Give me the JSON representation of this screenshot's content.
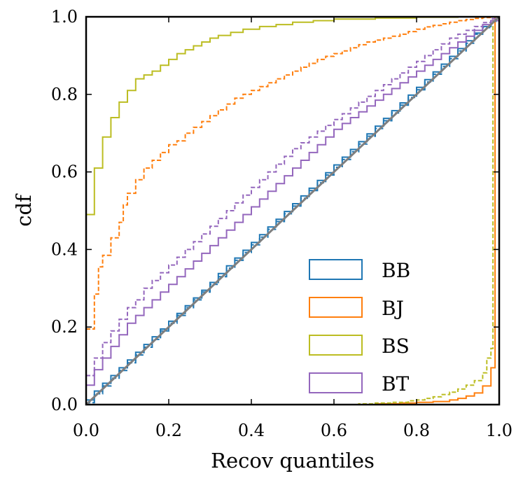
{
  "chart_data": {
    "type": "line",
    "subtype": "empirical-cdf-steps",
    "title": "",
    "xlabel": "Recov quantiles",
    "ylabel": "cdf",
    "xlim": [
      0,
      1
    ],
    "ylim": [
      0,
      1
    ],
    "xticks": [
      0.0,
      0.2,
      0.4,
      0.6,
      0.8,
      1.0
    ],
    "yticks": [
      0.0,
      0.2,
      0.4,
      0.6,
      0.8,
      1.0
    ],
    "xtick_labels": [
      "0.0",
      "0.2",
      "0.4",
      "0.6",
      "0.8",
      "1.0"
    ],
    "ytick_labels": [
      "0.0",
      "0.2",
      "0.4",
      "0.6",
      "0.8",
      "1.0"
    ],
    "legend_position": "lower-right",
    "reference_line": {
      "name": "diagonal",
      "color": "#7f7f7f",
      "points": [
        [
          0,
          0
        ],
        [
          1,
          1
        ]
      ]
    },
    "series": [
      {
        "name": "BB",
        "color": "#1f77b4",
        "solid": {
          "x": [
            0,
            0.02,
            0.04,
            0.06,
            0.08,
            0.1,
            0.12,
            0.14,
            0.16,
            0.18,
            0.2,
            0.22,
            0.24,
            0.26,
            0.28,
            0.3,
            0.32,
            0.34,
            0.36,
            0.38,
            0.4,
            0.42,
            0.44,
            0.46,
            0.48,
            0.5,
            0.52,
            0.54,
            0.56,
            0.58,
            0.6,
            0.62,
            0.64,
            0.66,
            0.68,
            0.7,
            0.72,
            0.74,
            0.76,
            0.78,
            0.8,
            0.82,
            0.84,
            0.86,
            0.88,
            0.9,
            0.92,
            0.94,
            0.96,
            0.98,
            1.0
          ],
          "y": [
            0.012,
            0.035,
            0.055,
            0.075,
            0.095,
            0.115,
            0.135,
            0.155,
            0.175,
            0.195,
            0.215,
            0.235,
            0.255,
            0.275,
            0.295,
            0.315,
            0.338,
            0.358,
            0.378,
            0.398,
            0.418,
            0.438,
            0.458,
            0.478,
            0.498,
            0.518,
            0.538,
            0.558,
            0.578,
            0.598,
            0.618,
            0.638,
            0.658,
            0.678,
            0.698,
            0.718,
            0.738,
            0.758,
            0.778,
            0.798,
            0.818,
            0.838,
            0.858,
            0.878,
            0.898,
            0.918,
            0.938,
            0.958,
            0.975,
            0.99,
            1.0
          ]
        },
        "dashed": {
          "x": [
            0,
            0.02,
            0.04,
            0.06,
            0.08,
            0.1,
            0.12,
            0.14,
            0.16,
            0.18,
            0.2,
            0.22,
            0.24,
            0.26,
            0.28,
            0.3,
            0.32,
            0.34,
            0.36,
            0.38,
            0.4,
            0.42,
            0.44,
            0.46,
            0.48,
            0.5,
            0.52,
            0.54,
            0.56,
            0.58,
            0.6,
            0.62,
            0.64,
            0.66,
            0.68,
            0.7,
            0.72,
            0.74,
            0.76,
            0.78,
            0.8,
            0.82,
            0.84,
            0.86,
            0.88,
            0.9,
            0.92,
            0.94,
            0.96,
            0.98,
            1.0
          ],
          "y": [
            0.005,
            0.028,
            0.048,
            0.068,
            0.088,
            0.108,
            0.128,
            0.148,
            0.168,
            0.19,
            0.21,
            0.23,
            0.25,
            0.27,
            0.29,
            0.31,
            0.33,
            0.352,
            0.372,
            0.392,
            0.412,
            0.432,
            0.452,
            0.472,
            0.492,
            0.512,
            0.532,
            0.552,
            0.572,
            0.592,
            0.612,
            0.632,
            0.652,
            0.672,
            0.692,
            0.712,
            0.732,
            0.752,
            0.772,
            0.792,
            0.812,
            0.832,
            0.852,
            0.872,
            0.892,
            0.912,
            0.932,
            0.955,
            0.972,
            0.988,
            1.0
          ]
        }
      },
      {
        "name": "BJ",
        "color": "#ff7f0e",
        "solid": {
          "x": [
            0,
            0.6,
            0.7,
            0.76,
            0.8,
            0.84,
            0.88,
            0.9,
            0.92,
            0.94,
            0.96,
            0.98,
            0.99,
            1.0
          ],
          "y": [
            0.0,
            0.0,
            0.002,
            0.004,
            0.006,
            0.008,
            0.012,
            0.016,
            0.022,
            0.03,
            0.048,
            0.095,
            1.0,
            1.0
          ]
        },
        "dashed": {
          "x": [
            0,
            0.02,
            0.03,
            0.04,
            0.06,
            0.08,
            0.09,
            0.1,
            0.12,
            0.14,
            0.16,
            0.18,
            0.2,
            0.22,
            0.24,
            0.26,
            0.28,
            0.3,
            0.32,
            0.34,
            0.36,
            0.38,
            0.4,
            0.42,
            0.44,
            0.46,
            0.48,
            0.5,
            0.52,
            0.54,
            0.56,
            0.58,
            0.6,
            0.62,
            0.64,
            0.66,
            0.68,
            0.7,
            0.72,
            0.74,
            0.76,
            0.78,
            0.8,
            0.82,
            0.84,
            0.86,
            0.88,
            0.9,
            0.92,
            0.94,
            0.96,
            0.98,
            1.0
          ],
          "y": [
            0.195,
            0.285,
            0.355,
            0.385,
            0.43,
            0.47,
            0.515,
            0.545,
            0.58,
            0.61,
            0.63,
            0.65,
            0.67,
            0.68,
            0.7,
            0.715,
            0.73,
            0.745,
            0.76,
            0.775,
            0.79,
            0.8,
            0.81,
            0.82,
            0.83,
            0.84,
            0.85,
            0.86,
            0.87,
            0.88,
            0.89,
            0.898,
            0.905,
            0.912,
            0.92,
            0.928,
            0.935,
            0.94,
            0.945,
            0.95,
            0.955,
            0.962,
            0.968,
            0.974,
            0.978,
            0.982,
            0.986,
            0.99,
            0.993,
            0.996,
            0.998,
            1.0,
            1.0
          ]
        }
      },
      {
        "name": "BS",
        "color": "#bcbd22",
        "solid": {
          "x": [
            0,
            0.02,
            0.04,
            0.06,
            0.08,
            0.1,
            0.12,
            0.14,
            0.16,
            0.18,
            0.2,
            0.22,
            0.24,
            0.26,
            0.28,
            0.3,
            0.32,
            0.35,
            0.38,
            0.42,
            0.46,
            0.5,
            0.55,
            0.6,
            0.7,
            0.8,
            0.9,
            0.98,
            1.0
          ],
          "y": [
            0.49,
            0.61,
            0.69,
            0.74,
            0.78,
            0.81,
            0.84,
            0.85,
            0.86,
            0.875,
            0.89,
            0.905,
            0.915,
            0.925,
            0.935,
            0.945,
            0.952,
            0.96,
            0.968,
            0.975,
            0.98,
            0.986,
            0.99,
            0.994,
            0.997,
            0.999,
            1.0,
            1.0,
            1.0
          ]
        },
        "dashed": {
          "x": [
            0,
            0.6,
            0.66,
            0.7,
            0.74,
            0.78,
            0.8,
            0.82,
            0.84,
            0.86,
            0.88,
            0.9,
            0.92,
            0.94,
            0.96,
            0.97,
            0.98,
            0.985,
            1.0
          ],
          "y": [
            0.0,
            0.0,
            0.002,
            0.004,
            0.006,
            0.01,
            0.012,
            0.016,
            0.02,
            0.026,
            0.032,
            0.04,
            0.05,
            0.062,
            0.082,
            0.12,
            0.145,
            1.0,
            1.0
          ]
        }
      },
      {
        "name": "BT",
        "color": "#9467bd",
        "solid": {
          "x": [
            0,
            0.02,
            0.04,
            0.06,
            0.08,
            0.1,
            0.12,
            0.14,
            0.16,
            0.18,
            0.2,
            0.22,
            0.24,
            0.26,
            0.28,
            0.3,
            0.32,
            0.34,
            0.36,
            0.38,
            0.4,
            0.42,
            0.44,
            0.46,
            0.48,
            0.5,
            0.52,
            0.54,
            0.56,
            0.58,
            0.6,
            0.62,
            0.64,
            0.66,
            0.68,
            0.7,
            0.72,
            0.74,
            0.76,
            0.78,
            0.8,
            0.82,
            0.84,
            0.86,
            0.88,
            0.9,
            0.92,
            0.94,
            0.96,
            0.98,
            1.0
          ],
          "y": [
            0.05,
            0.09,
            0.12,
            0.15,
            0.18,
            0.21,
            0.23,
            0.25,
            0.27,
            0.29,
            0.31,
            0.33,
            0.35,
            0.37,
            0.39,
            0.41,
            0.43,
            0.45,
            0.47,
            0.49,
            0.51,
            0.53,
            0.55,
            0.57,
            0.59,
            0.61,
            0.63,
            0.65,
            0.67,
            0.69,
            0.71,
            0.725,
            0.74,
            0.755,
            0.77,
            0.785,
            0.8,
            0.815,
            0.83,
            0.845,
            0.86,
            0.875,
            0.89,
            0.905,
            0.92,
            0.935,
            0.95,
            0.965,
            0.98,
            0.99,
            1.0
          ]
        },
        "dashed": {
          "x": [
            0,
            0.02,
            0.04,
            0.06,
            0.08,
            0.1,
            0.12,
            0.14,
            0.16,
            0.18,
            0.2,
            0.22,
            0.24,
            0.26,
            0.28,
            0.3,
            0.32,
            0.34,
            0.36,
            0.38,
            0.4,
            0.42,
            0.44,
            0.46,
            0.48,
            0.5,
            0.52,
            0.54,
            0.56,
            0.58,
            0.6,
            0.62,
            0.64,
            0.66,
            0.68,
            0.7,
            0.72,
            0.74,
            0.76,
            0.78,
            0.8,
            0.82,
            0.84,
            0.86,
            0.88,
            0.9,
            0.92,
            0.94,
            0.96,
            0.98,
            1.0
          ],
          "y": [
            0.075,
            0.12,
            0.16,
            0.19,
            0.22,
            0.25,
            0.27,
            0.3,
            0.32,
            0.34,
            0.36,
            0.38,
            0.4,
            0.42,
            0.44,
            0.46,
            0.48,
            0.5,
            0.52,
            0.54,
            0.56,
            0.58,
            0.6,
            0.62,
            0.64,
            0.66,
            0.675,
            0.69,
            0.705,
            0.72,
            0.735,
            0.75,
            0.765,
            0.78,
            0.795,
            0.81,
            0.825,
            0.84,
            0.855,
            0.87,
            0.885,
            0.9,
            0.915,
            0.93,
            0.945,
            0.955,
            0.965,
            0.975,
            0.985,
            0.995,
            1.0
          ]
        }
      }
    ]
  }
}
